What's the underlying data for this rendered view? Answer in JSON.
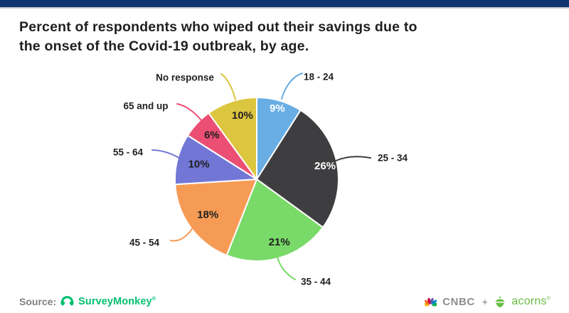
{
  "page": {
    "top_bar_color": "#0d3471",
    "background_color": "#ffffff",
    "title_line1": "Percent of respondents who wiped out their savings due to",
    "title_line2": "the onset of the Covid-19 outbreak, by age.",
    "title_color": "#1f1f1f"
  },
  "chart_data": {
    "type": "pie",
    "title": "Percent of respondents who wiped out their savings due to the onset of the Covid-19 outbreak, by age.",
    "unit": "%",
    "start_angle": "12 o'clock, clockwise",
    "categories": [
      "18 - 24",
      "25 - 34",
      "35 - 44",
      "45 - 54",
      "55 - 64",
      "65 and up",
      "No response"
    ],
    "values": [
      9,
      26,
      21,
      18,
      10,
      6,
      10
    ],
    "slice_colors": [
      "#68ade4",
      "#3e3e40",
      "#79da69",
      "#f69b55",
      "#7277d6",
      "#ec4f74",
      "#dcc53f"
    ],
    "value_label_colors": [
      "#ffffff",
      "#ffffff",
      "#1f1f1f",
      "#1f1f1f",
      "#1f1f1f",
      "#1f1f1f",
      "#1f1f1f"
    ],
    "legend_position": "category labels around pie with curved leader lines"
  },
  "footer": {
    "source_label": "Source:",
    "source_name": "SurveyMonkey",
    "source_trademark": "®",
    "cnbc_label": "CNBC",
    "plus_label": "+",
    "acorns_label": "acorns",
    "acorns_trademark": "®",
    "colors": {
      "surveymonkey_green": "#00bf6f",
      "cnbc_gray": "#8e8e8e",
      "acorns_green": "#69bd45",
      "source_gray": "#7f7f7f"
    }
  }
}
